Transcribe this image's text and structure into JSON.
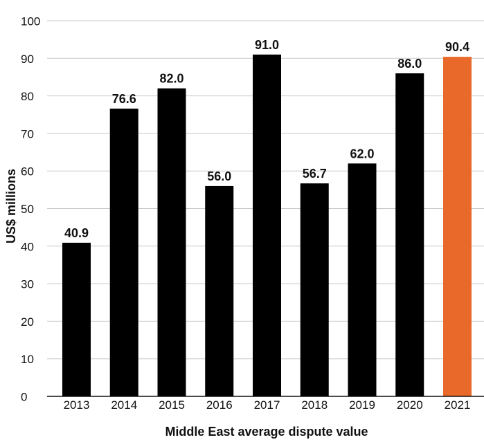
{
  "chart_data": {
    "type": "bar",
    "title": "",
    "xlabel": "Middle East average dispute value",
    "ylabel": "US$ millions",
    "categories": [
      "2013",
      "2014",
      "2015",
      "2016",
      "2017",
      "2018",
      "2019",
      "2020",
      "2021"
    ],
    "values": [
      40.9,
      76.6,
      82.0,
      56.0,
      91.0,
      56.7,
      62.0,
      86.0,
      90.4
    ],
    "value_labels": [
      "40.9",
      "76.6",
      "82.0",
      "56.0",
      "91.0",
      "56.7",
      "62.0",
      "86.0",
      "90.4"
    ],
    "ylim": [
      0,
      100
    ],
    "yticks": [
      "0",
      "10",
      "20",
      "30",
      "40",
      "50",
      "60",
      "70",
      "80",
      "90",
      "100"
    ],
    "grid": true,
    "legend": "none",
    "colors": {
      "bar": "#000000",
      "highlight": "#e8692a",
      "grid": "#c8c8c8"
    },
    "highlight_category": "2021"
  }
}
